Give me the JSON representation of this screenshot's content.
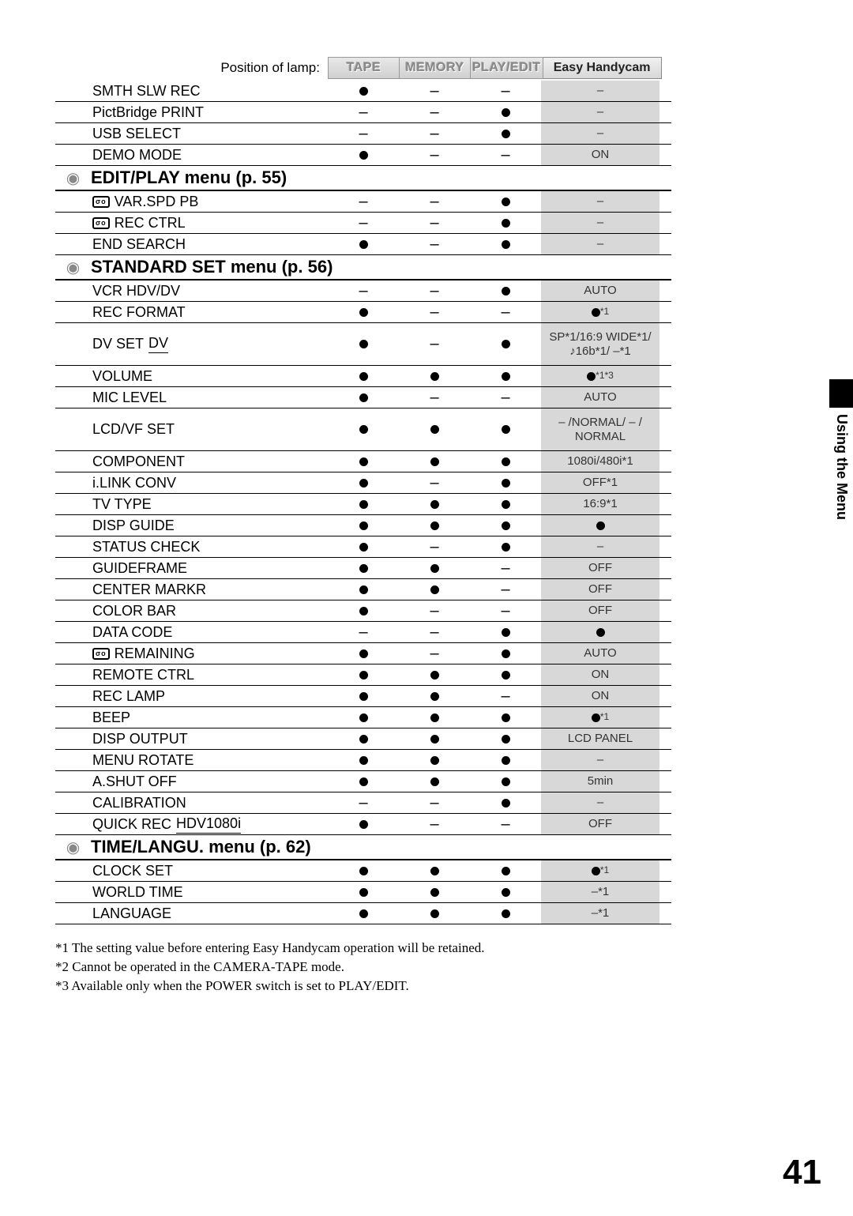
{
  "header": {
    "posLabel": "Position of lamp:",
    "cols": [
      "TAPE",
      "MEMORY",
      "PLAY/EDIT",
      "Easy Handycam"
    ]
  },
  "sections": [
    {
      "type": "rows",
      "rows": [
        {
          "label": "SMTH SLW REC",
          "icon": "",
          "tape": "dot",
          "memory": "dash",
          "playedit": "dash",
          "easy": "–"
        },
        {
          "label": "PictBridge PRINT",
          "icon": "",
          "tape": "dash",
          "memory": "dash",
          "playedit": "dot",
          "easy": "–"
        },
        {
          "label": "USB SELECT",
          "icon": "",
          "tape": "dash",
          "memory": "dash",
          "playedit": "dot",
          "easy": "–"
        },
        {
          "label": "DEMO MODE",
          "icon": "",
          "tape": "dot",
          "memory": "dash",
          "playedit": "dash",
          "easy": "ON"
        }
      ]
    },
    {
      "type": "section",
      "icon": "editplay-icon",
      "label": "EDIT/PLAY menu (p. 55)"
    },
    {
      "type": "rows",
      "rows": [
        {
          "label": "VAR.SPD PB",
          "icon": "tape",
          "tape": "dash",
          "memory": "dash",
          "playedit": "dot",
          "easy": "–"
        },
        {
          "label": "REC CTRL",
          "icon": "tape",
          "tape": "dash",
          "memory": "dash",
          "playedit": "dot",
          "easy": "–"
        },
        {
          "label": "END SEARCH",
          "icon": "",
          "tape": "dot",
          "memory": "dash",
          "playedit": "dot",
          "easy": "–"
        }
      ]
    },
    {
      "type": "section",
      "icon": "standardset-icon",
      "label": "STANDARD SET menu (p. 56)"
    },
    {
      "type": "rows",
      "rows": [
        {
          "label": "VCR HDV/DV",
          "icon": "",
          "tape": "dash",
          "memory": "dash",
          "playedit": "dot",
          "easy": "AUTO"
        },
        {
          "label": "REC FORMAT",
          "icon": "",
          "tape": "dot",
          "memory": "dash",
          "playedit": "dash",
          "easy": "●*1"
        },
        {
          "label": "DV SET",
          "sub": "DV",
          "icon": "",
          "tape": "dot",
          "memory": "dash",
          "playedit": "dot",
          "easy": "SP*1/16:9 WIDE*1/ ♪16b*1/ –*1",
          "tall": true
        },
        {
          "label": "VOLUME",
          "icon": "",
          "tape": "dot",
          "memory": "dot",
          "playedit": "dot",
          "easy": "●*1*3"
        },
        {
          "label": "MIC LEVEL",
          "icon": "",
          "tape": "dot",
          "memory": "dash",
          "playedit": "dash",
          "easy": "AUTO"
        },
        {
          "label": "LCD/VF SET",
          "icon": "",
          "tape": "dot",
          "memory": "dot",
          "playedit": "dot",
          "easy": "– /NORMAL/ – / NORMAL",
          "tall": true
        },
        {
          "label": "COMPONENT",
          "icon": "",
          "tape": "dot",
          "memory": "dot",
          "playedit": "dot",
          "easy": "1080i/480i*1"
        },
        {
          "label": "i.LINK CONV",
          "icon": "",
          "tape": "dot",
          "memory": "dash",
          "playedit": "dot",
          "easy": "OFF*1"
        },
        {
          "label": "TV TYPE",
          "icon": "",
          "tape": "dot",
          "memory": "dot",
          "playedit": "dot",
          "easy": "16:9*1"
        },
        {
          "label": "DISP GUIDE",
          "icon": "",
          "tape": "dot",
          "memory": "dot",
          "playedit": "dot",
          "easy": "●"
        },
        {
          "label": "STATUS CHECK",
          "icon": "",
          "tape": "dot",
          "memory": "dash",
          "playedit": "dot",
          "easy": "–"
        },
        {
          "label": "GUIDEFRAME",
          "icon": "",
          "tape": "dot",
          "memory": "dot",
          "playedit": "dash",
          "easy": "OFF"
        },
        {
          "label": "CENTER MARKR",
          "icon": "",
          "tape": "dot",
          "memory": "dot",
          "playedit": "dash",
          "easy": "OFF"
        },
        {
          "label": "COLOR BAR",
          "icon": "",
          "tape": "dot",
          "memory": "dash",
          "playedit": "dash",
          "easy": "OFF"
        },
        {
          "label": "DATA CODE",
          "icon": "",
          "tape": "dash",
          "memory": "dash",
          "playedit": "dot",
          "easy": "●"
        },
        {
          "label": "REMAINING",
          "icon": "tape",
          "tape": "dot",
          "memory": "dash",
          "playedit": "dot",
          "easy": "AUTO"
        },
        {
          "label": "REMOTE CTRL",
          "icon": "",
          "tape": "dot",
          "memory": "dot",
          "playedit": "dot",
          "easy": "ON"
        },
        {
          "label": "REC LAMP",
          "icon": "",
          "tape": "dot",
          "memory": "dot",
          "playedit": "dash",
          "easy": "ON"
        },
        {
          "label": "BEEP",
          "icon": "",
          "tape": "dot",
          "memory": "dot",
          "playedit": "dot",
          "easy": "●*1"
        },
        {
          "label": "DISP OUTPUT",
          "icon": "",
          "tape": "dot",
          "memory": "dot",
          "playedit": "dot",
          "easy": "LCD PANEL"
        },
        {
          "label": "MENU ROTATE",
          "icon": "",
          "tape": "dot",
          "memory": "dot",
          "playedit": "dot",
          "easy": "–"
        },
        {
          "label": "A.SHUT OFF",
          "icon": "",
          "tape": "dot",
          "memory": "dot",
          "playedit": "dot",
          "easy": "5min"
        },
        {
          "label": "CALIBRATION",
          "icon": "",
          "tape": "dash",
          "memory": "dash",
          "playedit": "dot",
          "easy": "–"
        },
        {
          "label": "QUICK REC",
          "sub": "HDV1080i",
          "icon": "",
          "tape": "dot",
          "memory": "dash",
          "playedit": "dash",
          "easy": "OFF"
        }
      ]
    },
    {
      "type": "section",
      "icon": "timelang-icon",
      "label": "TIME/LANGU. menu (p. 62)"
    },
    {
      "type": "rows",
      "rows": [
        {
          "label": "CLOCK SET",
          "icon": "",
          "tape": "dot",
          "memory": "dot",
          "playedit": "dot",
          "easy": "●*1"
        },
        {
          "label": "WORLD TIME",
          "icon": "",
          "tape": "dot",
          "memory": "dot",
          "playedit": "dot",
          "easy": "–*1"
        },
        {
          "label": "LANGUAGE",
          "icon": "",
          "tape": "dot",
          "memory": "dot",
          "playedit": "dot",
          "easy": "–*1"
        }
      ]
    }
  ],
  "footnotes": [
    "*1 The setting value before entering Easy Handycam operation will be retained.",
    "*2 Cannot be operated in the CAMERA-TAPE mode.",
    "*3 Available only when the POWER switch is set to PLAY/EDIT."
  ],
  "sideTab": "Using the Menu",
  "pageNumber": "41"
}
